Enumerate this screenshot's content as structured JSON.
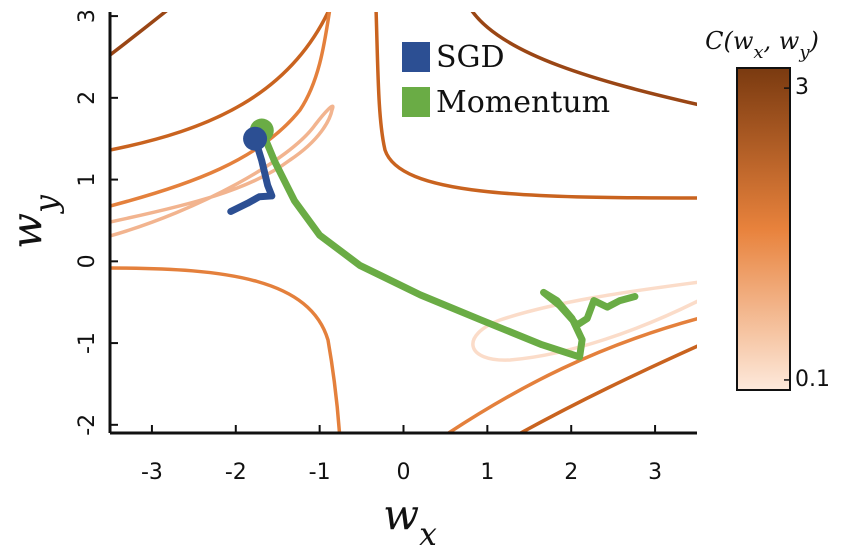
{
  "chart_data": {
    "type": "contour-trajectory",
    "x_label": [
      {
        "text": "w"
      },
      {
        "text": "x",
        "sub": true
      }
    ],
    "y_label": [
      {
        "text": "w"
      },
      {
        "text": "y",
        "sub": true
      }
    ],
    "xlim": [
      -3.5,
      3.5
    ],
    "ylim": [
      -2.1,
      3.05
    ],
    "xticks": [
      -3,
      -2,
      -1,
      0,
      1,
      2,
      3
    ],
    "yticks": [
      -2,
      -1,
      0,
      1,
      2,
      3
    ],
    "series": [
      {
        "name": "SGD",
        "color": "#2c4f93",
        "x": [
          -1.77,
          -1.69,
          -1.62,
          -1.57,
          -1.72,
          -1.86,
          -2.06
        ],
        "values": [
          1.5,
          1.23,
          0.93,
          0.8,
          0.79,
          0.71,
          0.61
        ]
      },
      {
        "name": "Momentum",
        "color": "#6aac45",
        "x": [
          -1.69,
          -1.54,
          -1.3,
          -1.0,
          -0.52,
          0.2,
          0.93,
          1.65,
          2.1,
          2.13,
          2.01,
          1.83,
          1.67,
          1.86,
          2.07,
          2.19,
          2.27,
          2.43,
          2.58,
          2.76
        ],
        "values": [
          1.6,
          1.23,
          0.74,
          0.32,
          -0.05,
          -0.41,
          -0.72,
          -1.02,
          -1.17,
          -0.96,
          -0.7,
          -0.48,
          -0.38,
          -0.54,
          -0.78,
          -0.7,
          -0.48,
          -0.56,
          -0.48,
          -0.43
        ]
      }
    ],
    "colorbar": {
      "label": [
        {
          "text": "C("
        },
        {
          "text": "w"
        },
        {
          "text": "x",
          "sub": true
        },
        {
          "text": ", "
        },
        {
          "text": "w"
        },
        {
          "text": "y",
          "sub": true
        },
        {
          "text": ")"
        }
      ],
      "colors": [
        "#fde9db",
        "#e8823c",
        "#7a3a10"
      ],
      "lim": [
        0,
        3.2
      ],
      "ticks": [
        0.1,
        3
      ]
    }
  }
}
